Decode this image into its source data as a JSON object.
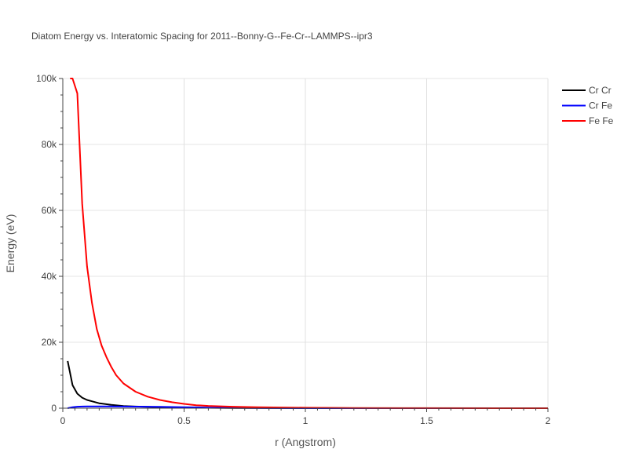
{
  "chart_data": {
    "type": "line",
    "title": "Diatom Energy vs. Interatomic Spacing for 2011--Bonny-G--Fe-Cr--LAMMPS--ipr3",
    "xlabel": "r (Angstrom)",
    "ylabel": "Energy (eV)",
    "xlim": [
      0,
      2
    ],
    "ylim": [
      0,
      100000
    ],
    "x_ticks": [
      0,
      0.5,
      1,
      1.5,
      2
    ],
    "x_tick_labels": [
      "0",
      "0.5",
      "1",
      "1.5",
      "2"
    ],
    "y_ticks": [
      0,
      20000,
      40000,
      60000,
      80000,
      100000
    ],
    "y_tick_labels": [
      "0",
      "20k",
      "40k",
      "60k",
      "80k",
      "100k"
    ],
    "grid": true,
    "legend_position": "top-right",
    "series": [
      {
        "name": "Cr Cr",
        "color": "#000000",
        "x": [
          0.02,
          0.04,
          0.06,
          0.08,
          0.1,
          0.12,
          0.15,
          0.2,
          0.25,
          0.3,
          0.4,
          0.5,
          0.6,
          0.7,
          0.8,
          1.0,
          1.2,
          1.5,
          2.0
        ],
        "y": [
          14300,
          7000,
          4400,
          3200,
          2500,
          2100,
          1500,
          1000,
          650,
          500,
          300,
          200,
          120,
          80,
          50,
          20,
          10,
          0,
          0
        ]
      },
      {
        "name": "Cr Fe",
        "color": "#0000ff",
        "x": [
          0.02,
          0.04,
          0.06,
          0.08,
          0.1,
          0.15,
          0.2,
          0.25,
          0.3,
          0.4,
          0.5,
          0.6,
          0.7,
          0.8,
          1.0,
          1.2,
          1.5,
          2.0
        ],
        "y": [
          0,
          300,
          450,
          500,
          520,
          530,
          520,
          500,
          470,
          400,
          300,
          200,
          120,
          70,
          20,
          10,
          0,
          0
        ]
      },
      {
        "name": "Fe Fe",
        "color": "#ff0000",
        "x": [
          0.03,
          0.04,
          0.06,
          0.08,
          0.1,
          0.12,
          0.14,
          0.16,
          0.18,
          0.2,
          0.22,
          0.25,
          0.3,
          0.35,
          0.4,
          0.45,
          0.5,
          0.55,
          0.6,
          0.7,
          0.8,
          1.0,
          1.2,
          1.5,
          2.0
        ],
        "y": [
          100000,
          100000,
          95500,
          62000,
          43000,
          32000,
          24000,
          19000,
          15500,
          12500,
          10000,
          7500,
          5000,
          3500,
          2500,
          1800,
          1300,
          900,
          700,
          450,
          300,
          150,
          80,
          30,
          0
        ]
      }
    ]
  }
}
